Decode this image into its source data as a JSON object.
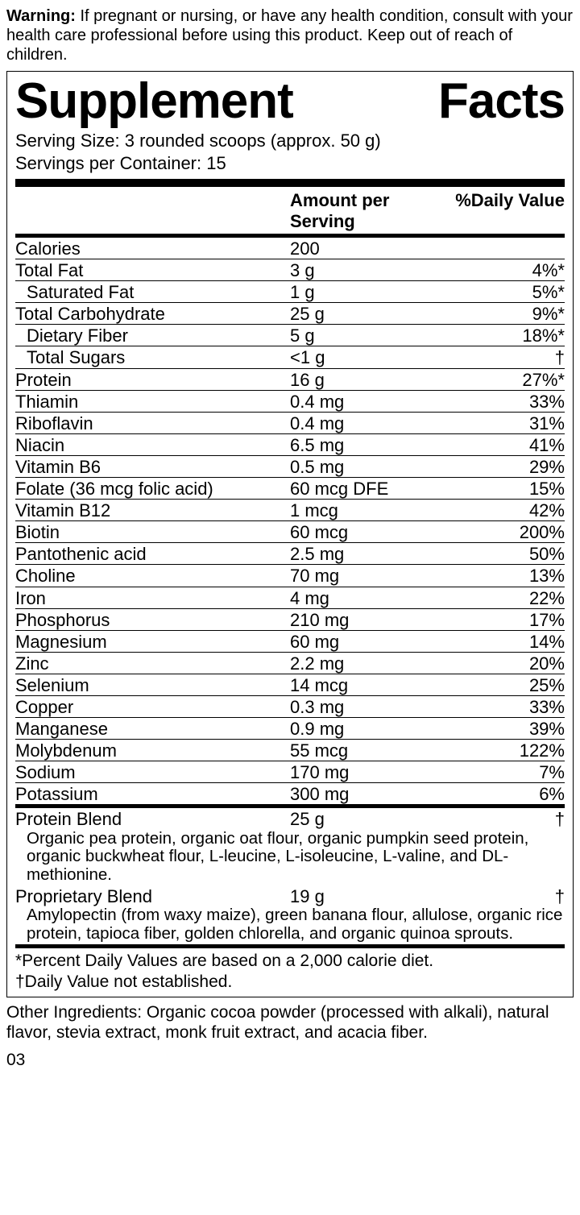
{
  "warning_label": "Warning:",
  "warning_text": " If pregnant or nursing, or have any health condition, consult with your health care professional before using this product. Keep out of reach of children.",
  "title_left": "Supplement",
  "title_right": "Facts",
  "serving_size": "Serving Size: 3 rounded scoops (approx. 50 g)",
  "servings_per": "Servings per Container: 15",
  "header_amount": "Amount per Serving",
  "header_dv": "%Daily Value",
  "rows": [
    {
      "name": "Calories",
      "amount": "200",
      "dv": "",
      "indent": false
    },
    {
      "name": "Total Fat",
      "amount": "3 g",
      "dv": "4%*",
      "indent": false
    },
    {
      "name": "Saturated Fat",
      "amount": "1 g",
      "dv": "5%*",
      "indent": true
    },
    {
      "name": "Total Carbohydrate",
      "amount": "25 g",
      "dv": "9%*",
      "indent": false
    },
    {
      "name": "Dietary Fiber",
      "amount": "5 g",
      "dv": "18%*",
      "indent": true
    },
    {
      "name": "Total Sugars",
      "amount": "<1 g",
      "dv": "†",
      "indent": true
    },
    {
      "name": "Protein",
      "amount": "16 g",
      "dv": "27%*",
      "indent": false
    },
    {
      "name": "Thiamin",
      "amount": "0.4 mg",
      "dv": "33%",
      "indent": false
    },
    {
      "name": "Riboflavin",
      "amount": "0.4 mg",
      "dv": "31%",
      "indent": false
    },
    {
      "name": "Niacin",
      "amount": "6.5 mg",
      "dv": "41%",
      "indent": false
    },
    {
      "name": "Vitamin B6",
      "amount": "0.5 mg",
      "dv": "29%",
      "indent": false
    },
    {
      "name": "Folate (36 mcg folic acid)",
      "amount": "60 mcg DFE",
      "dv": "15%",
      "indent": false
    },
    {
      "name": "Vitamin B12",
      "amount": "1 mcg",
      "dv": "42%",
      "indent": false
    },
    {
      "name": "Biotin",
      "amount": "60 mcg",
      "dv": "200%",
      "indent": false
    },
    {
      "name": "Pantothenic acid",
      "amount": "2.5 mg",
      "dv": "50%",
      "indent": false
    },
    {
      "name": "Choline",
      "amount": "70 mg",
      "dv": "13%",
      "indent": false
    },
    {
      "name": "Iron",
      "amount": "4 mg",
      "dv": "22%",
      "indent": false
    },
    {
      "name": "Phosphorus",
      "amount": "210 mg",
      "dv": "17%",
      "indent": false
    },
    {
      "name": "Magnesium",
      "amount": "60 mg",
      "dv": "14%",
      "indent": false
    },
    {
      "name": "Zinc",
      "amount": "2.2 mg",
      "dv": "20%",
      "indent": false
    },
    {
      "name": "Selenium",
      "amount": "14 mcg",
      "dv": "25%",
      "indent": false
    },
    {
      "name": "Copper",
      "amount": "0.3 mg",
      "dv": "33%",
      "indent": false
    },
    {
      "name": "Manganese",
      "amount": "0.9 mg",
      "dv": "39%",
      "indent": false
    },
    {
      "name": "Molybdenum",
      "amount": "55 mcg",
      "dv": "122%",
      "indent": false
    },
    {
      "name": "Sodium",
      "amount": "170 mg",
      "dv": "7%",
      "indent": false
    },
    {
      "name": "Potassium",
      "amount": "300 mg",
      "dv": "6%",
      "indent": false
    }
  ],
  "blend1": {
    "name": "Protein Blend",
    "amount": "25 g",
    "dv": "†",
    "desc": "Organic pea protein, organic oat flour, organic pumpkin seed protein, organic buckwheat flour, L-leucine, L-isoleucine, L-valine, and DL-methionine."
  },
  "blend2": {
    "name": "Proprietary Blend",
    "amount": "19 g",
    "dv": "†",
    "desc": "Amylopectin (from waxy maize), green banana flour, allulose, organic rice protein, tapioca fiber,  golden chlorella, and organic quinoa sprouts."
  },
  "footnote1": "*Percent Daily Values are based on a 2,000 calorie diet.",
  "footnote2": "†Daily Value not established.",
  "other_ingredients": "Other Ingredients: Organic cocoa powder (processed with alkali), natural flavor, stevia extract, monk fruit extract, and acacia fiber.",
  "pagenum": "03"
}
